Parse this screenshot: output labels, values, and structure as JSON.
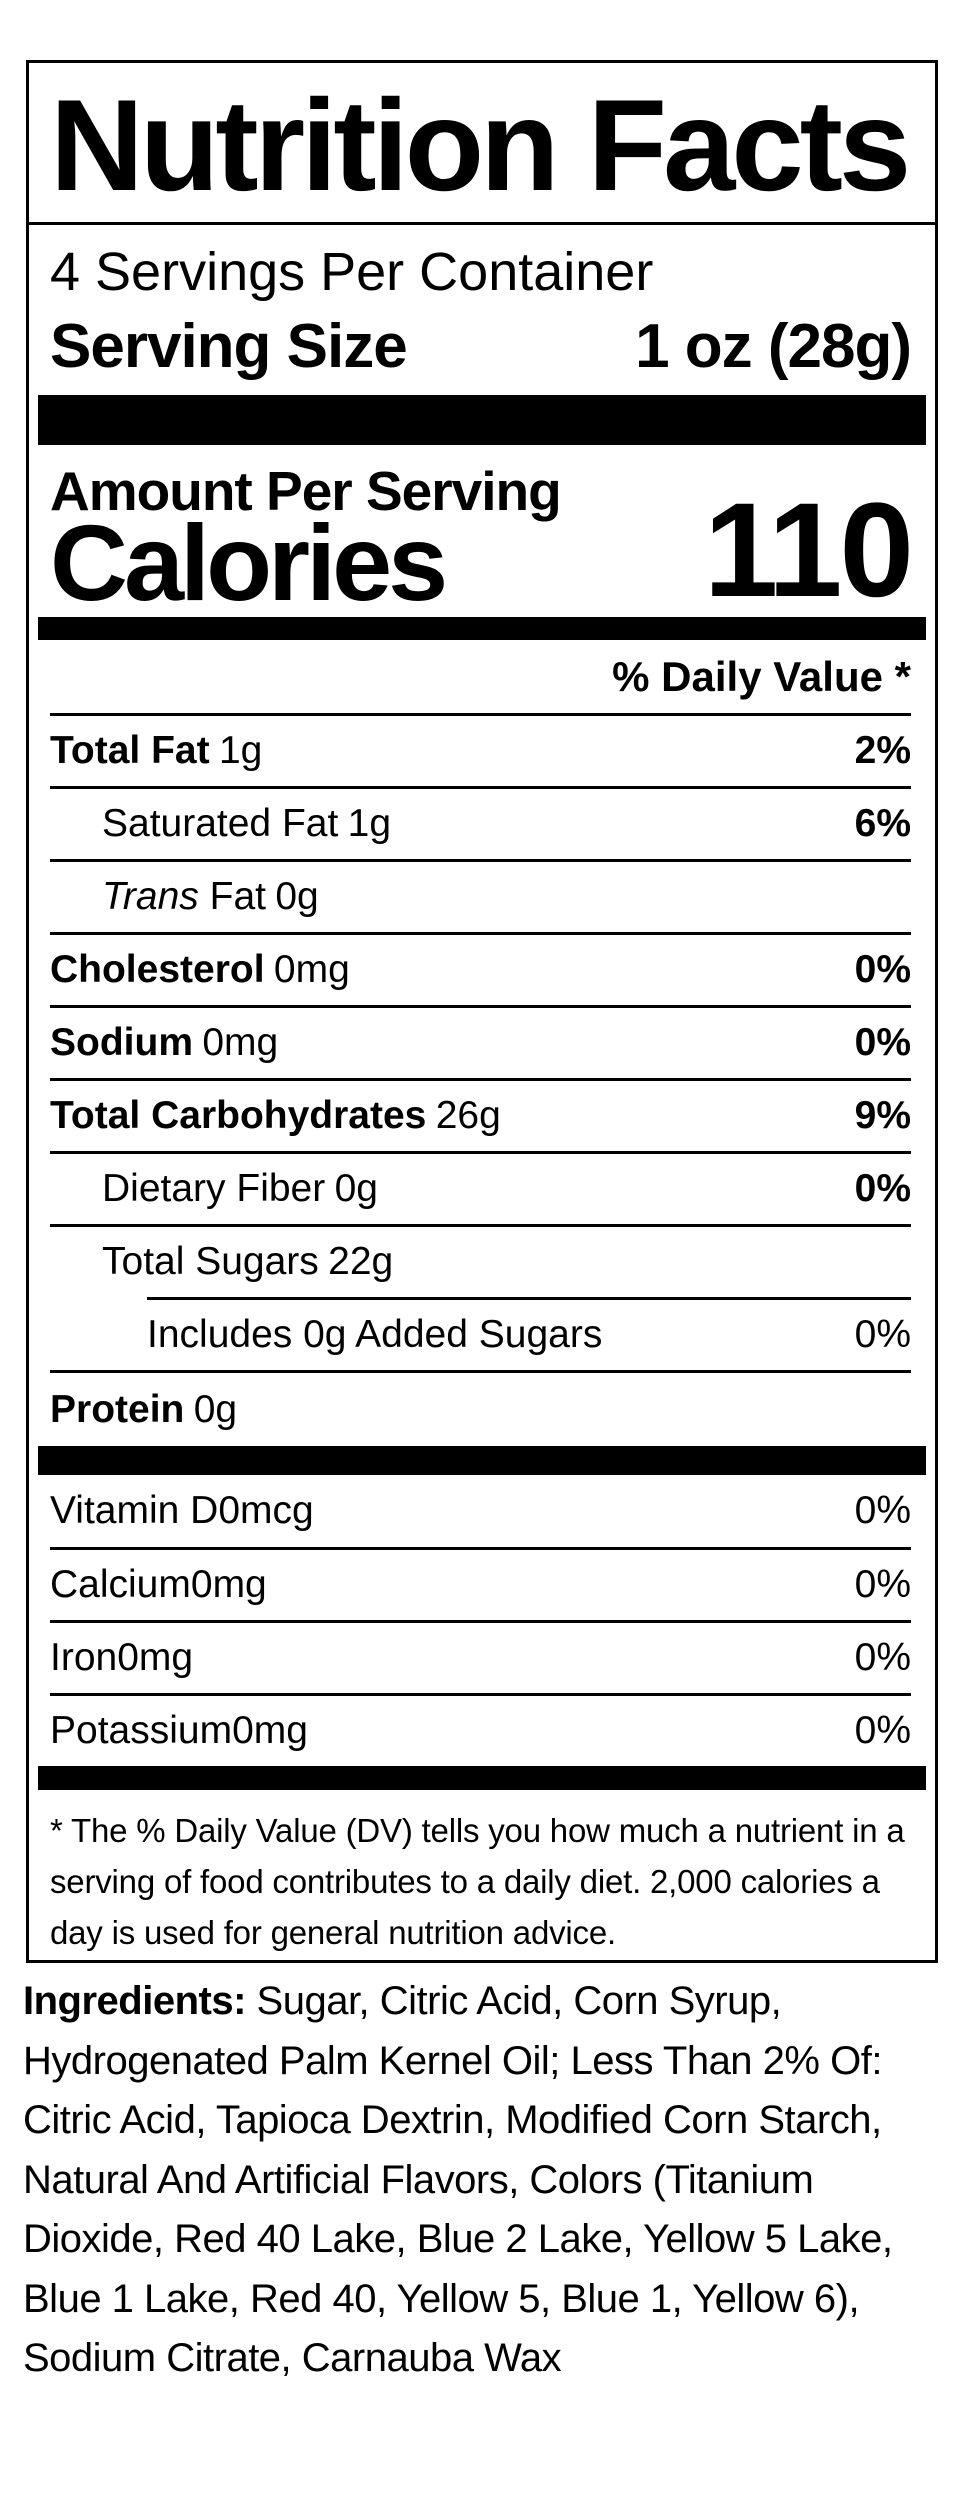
{
  "nutrition_label": {
    "title": "Nutrition Facts",
    "servings_per_container": "4 Servings Per Container",
    "serving_size": {
      "label": "Serving Size",
      "value": "1 oz (28g)"
    },
    "amount_per_serving": "Amount Per Serving",
    "calories": {
      "label": "Calories",
      "value": "110"
    },
    "daily_value_header": "% Daily Value *",
    "nutrient_rows": [
      {
        "name": "Total Fat",
        "amount": "1g",
        "daily_value": "2%"
      },
      {
        "name": "Saturated Fat",
        "amount": "1g",
        "daily_value": "6%"
      },
      {
        "name_italic": "Trans",
        "name": " Fat",
        "amount": "0g",
        "daily_value": ""
      },
      {
        "name": "Cholesterol",
        "amount": "0mg",
        "daily_value": "0%"
      },
      {
        "name": "Sodium",
        "amount": "0mg",
        "daily_value": "0%"
      },
      {
        "name": "Total Carbohydrates",
        "amount": "26g",
        "daily_value": "9%"
      },
      {
        "name": "Dietary Fiber",
        "amount": "0g",
        "daily_value": "0%"
      },
      {
        "name": "Total Sugars",
        "amount": "22g",
        "daily_value": ""
      },
      {
        "name": "Includes 0g Added Sugars",
        "amount": "",
        "daily_value": "0%"
      },
      {
        "name": "Protein",
        "amount": "0g",
        "daily_value": ""
      }
    ],
    "vitamin_rows": [
      {
        "name": "Vitamin D",
        "amount": "0mcg",
        "daily_value": "0%"
      },
      {
        "name": "Calcium",
        "amount": "0mg",
        "daily_value": "0%"
      },
      {
        "name": "Iron",
        "amount": "0mg",
        "daily_value": "0%"
      },
      {
        "name": "Potassium",
        "amount": "0mg",
        "daily_value": "0%"
      }
    ],
    "footnote": "* The % Daily Value (DV) tells you how much a nutrient in a serving of food contributes to a daily diet. 2,000 calories a day is used for general nutrition advice."
  },
  "ingredients": {
    "label": "Ingredients:",
    "lines": [
      " Sugar, Citric Acid, Corn Syrup,",
      "Hydrogenated Palm Kernel Oil; Less Than 2% Of:",
      "Citric Acid, Tapioca Dextrin, Modified Corn Starch,",
      "Natural And Artificial Flavors, Colors (Titanium",
      "Dioxide, Red 40 Lake, Blue 2 Lake, Yellow 5 Lake,",
      "Blue 1 Lake, Red 40, Yellow 5, Blue 1, Yellow 6),",
      "Sodium Citrate, Carnauba Wax"
    ]
  }
}
